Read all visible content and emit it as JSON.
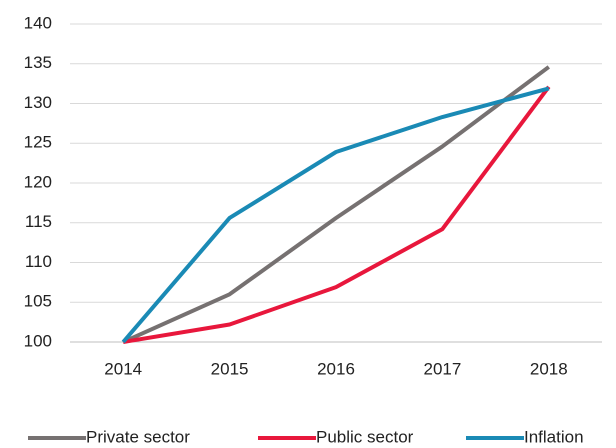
{
  "chart_data": {
    "type": "line",
    "categories": [
      "2014",
      "2015",
      "2016",
      "2017",
      "2018"
    ],
    "series": [
      {
        "name": "Private sector",
        "color": "#767171",
        "values": [
          100,
          106,
          115.6,
          124.6,
          134.6
        ]
      },
      {
        "name": "Public sector",
        "color": "#e8173c",
        "values": [
          100,
          102.2,
          106.9,
          114.2,
          132.1
        ]
      },
      {
        "name": "Inflation",
        "color": "#1a8ab5",
        "values": [
          100,
          115.6,
          123.9,
          128.3,
          131.9
        ]
      }
    ],
    "ylim": [
      100,
      140
    ],
    "yticks": [
      100,
      105,
      110,
      115,
      120,
      125,
      130,
      135,
      140
    ],
    "grid": true,
    "legend": "bottom"
  }
}
